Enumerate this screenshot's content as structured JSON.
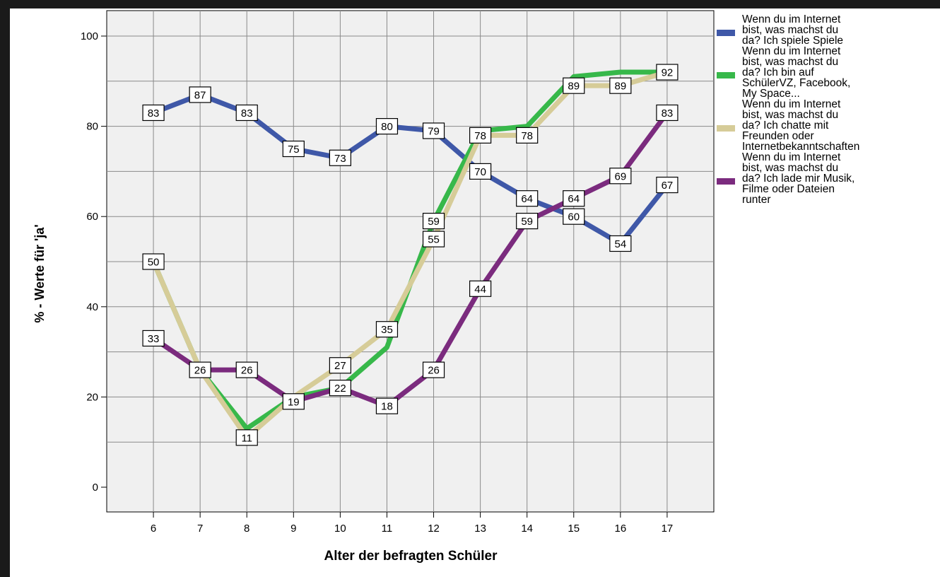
{
  "chart_data": {
    "type": "line",
    "x": [
      6,
      7,
      8,
      9,
      10,
      11,
      12,
      13,
      14,
      15,
      16,
      17
    ],
    "xlabel": "Alter der befragten Schüler",
    "ylabel": "% - Werte für 'ja'",
    "ylim": [
      0,
      100
    ],
    "yticks": [
      0,
      20,
      40,
      60,
      80,
      100
    ],
    "grid": true,
    "legend_position": "right",
    "series": [
      {
        "name": "Wenn du im Internet bist, was machst du da? Ich spiele Spiele",
        "color": "#3f58a8",
        "values": [
          83,
          87,
          83,
          75,
          73,
          80,
          79,
          70,
          64,
          60,
          54,
          67
        ],
        "labels": [
          "83",
          "87",
          "83",
          "75",
          "73",
          "80",
          "79",
          "70",
          "64",
          "60",
          "54",
          "67"
        ]
      },
      {
        "name": "Wenn du im Internet bist, was machst du da? Ich bin auf SchülerVZ, Facebook, My Space...",
        "color": "#37b84a",
        "values": [
          50,
          26,
          13,
          20,
          22,
          31,
          59,
          79,
          80,
          91,
          92,
          92
        ],
        "labels": [
          "",
          "",
          "",
          "",
          "",
          "",
          "59",
          "",
          "",
          "",
          "",
          ""
        ]
      },
      {
        "name": "Wenn du im Internet bist, was machst du da? Ich chatte mit Freunden oder Internetbekanntschaften",
        "color": "#d6cc98",
        "values": [
          50,
          26,
          11,
          20,
          27,
          35,
          55,
          78,
          78,
          89,
          89,
          92
        ],
        "labels": [
          "50",
          "",
          "11",
          "",
          "27",
          "35",
          "55",
          "78",
          "78",
          "89",
          "89",
          "92"
        ]
      },
      {
        "name": "Wenn du im Internet bist, was machst du da? Ich lade mir Musik, Filme oder Dateien runter",
        "color": "#7b2b7e",
        "values": [
          33,
          26,
          26,
          19,
          22,
          18,
          26,
          44,
          59,
          64,
          69,
          83
        ],
        "labels": [
          "33",
          "26",
          "26",
          "19",
          "22",
          "18",
          "26",
          "44",
          "59",
          "64",
          "69",
          "83"
        ]
      }
    ]
  },
  "legend": {
    "items": [
      {
        "label": "Wenn du im Internet\nbist, was machst du\nda? Ich spiele Spiele",
        "color": "#3f58a8"
      },
      {
        "label": "Wenn du im Internet\nbist, was machst du\nda? Ich bin auf\nSchülerVZ, Facebook,\nMy Space...",
        "color": "#37b84a"
      },
      {
        "label": "Wenn du im Internet\nbist, was machst du\nda? Ich chatte mit\nFreunden oder\nInternetbekanntschaften",
        "color": "#d6cc98"
      },
      {
        "label": "Wenn du im Internet\nbist, was machst du\nda? Ich lade mir Musik,\nFilme oder Dateien\nrunter",
        "color": "#7b2b7e"
      }
    ]
  }
}
